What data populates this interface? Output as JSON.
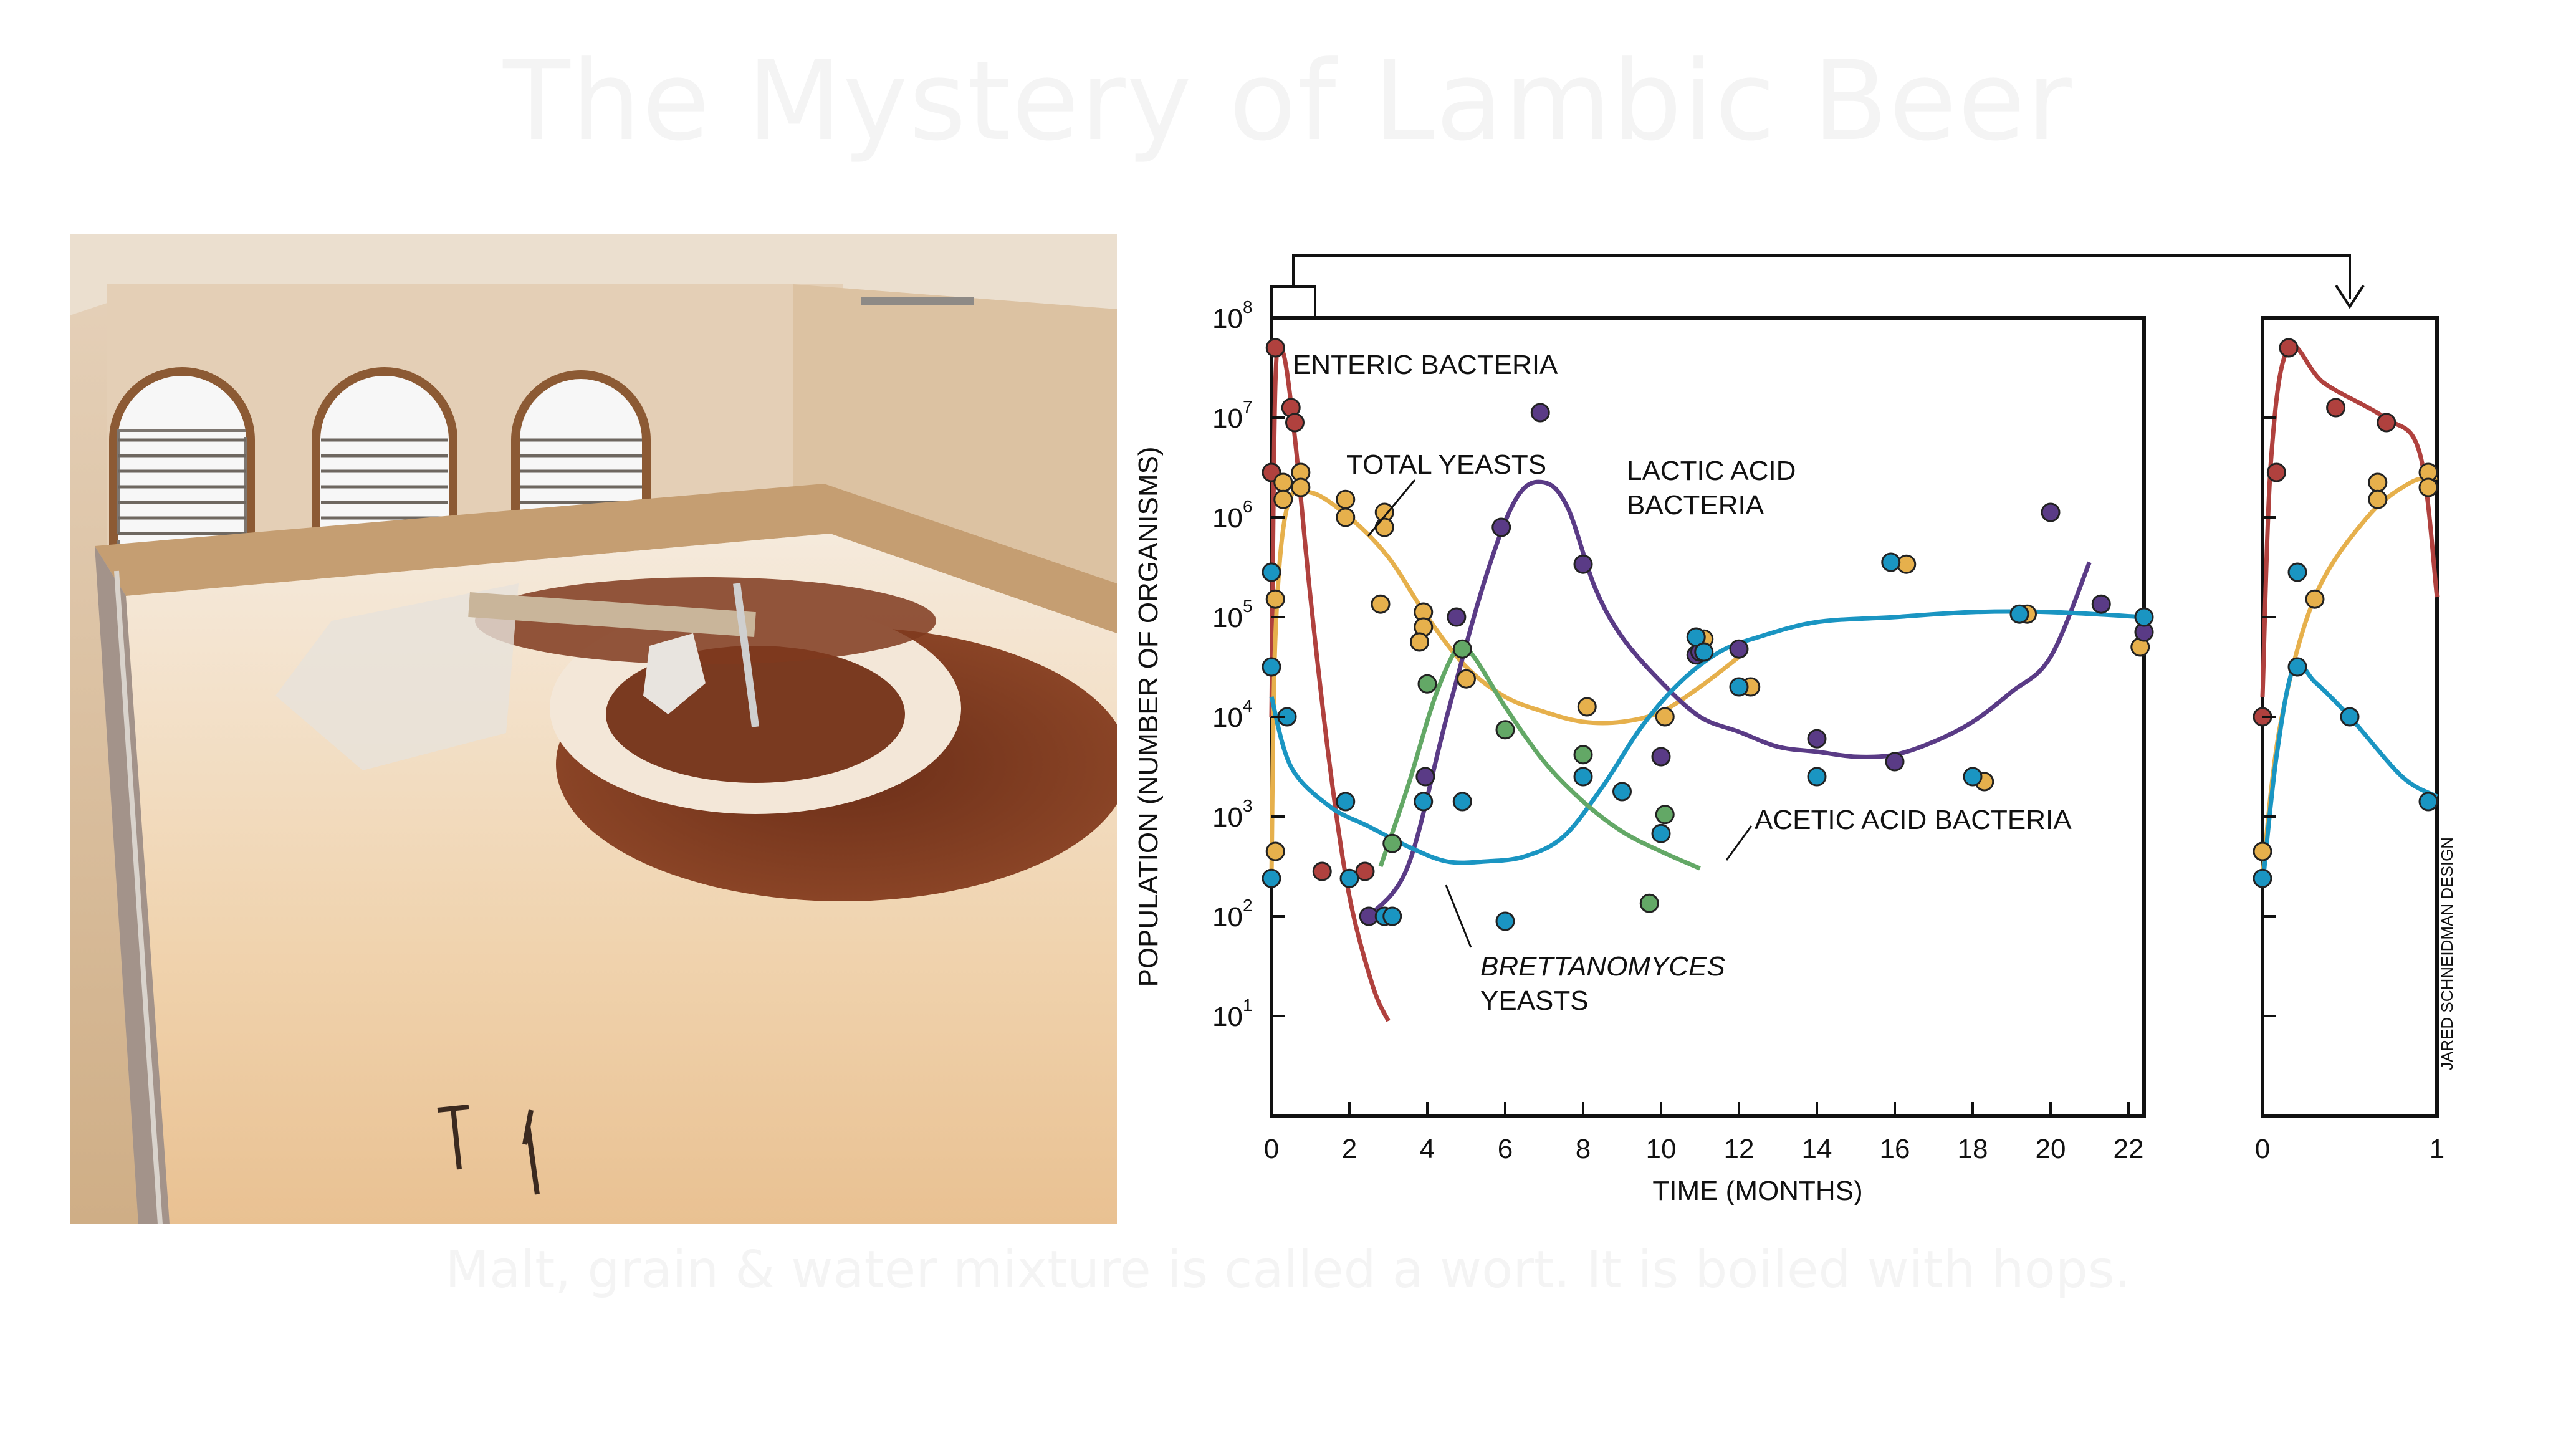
{
  "slide": {
    "title": "The Mystery of Lambic Beer",
    "caption": "Malt, grain & water mixture is called a wort. It is boiled with hops."
  },
  "colors": {
    "enteric": "#b0413e",
    "yeasts": "#e6b04c",
    "lactic": "#5a3b86",
    "acetic": "#1a95c2",
    "brett": "#63a866"
  },
  "chart_data": {
    "type": "scatter",
    "ylabel": "POPULATION (NUMBER OF ORGANISMS)",
    "xlabel": "TIME (MONTHS)",
    "credit": "JARED SCHNEIDMAN DESIGN",
    "y_scale": "log",
    "y_ticks": [
      {
        "base": "10",
        "exp": "1"
      },
      {
        "base": "10",
        "exp": "2"
      },
      {
        "base": "10",
        "exp": "3"
      },
      {
        "base": "10",
        "exp": "4"
      },
      {
        "base": "10",
        "exp": "5"
      },
      {
        "base": "10",
        "exp": "6"
      },
      {
        "base": "10",
        "exp": "7"
      },
      {
        "base": "10",
        "exp": "8"
      }
    ],
    "main_panel": {
      "xlim": [
        0,
        22.4
      ],
      "x_ticks": [
        "0",
        "2",
        "4",
        "6",
        "8",
        "10",
        "12",
        "14",
        "16",
        "18",
        "20",
        "22"
      ]
    },
    "inset_panel": {
      "xlim": [
        0,
        1
      ],
      "x_ticks": [
        "0",
        "1"
      ]
    },
    "labels": {
      "enteric": "ENTERIC BACTERIA",
      "yeasts": "TOTAL YEASTS",
      "lactic_1": "LACTIC ACID",
      "lactic_2": "BACTERIA",
      "acetic": "ACETIC ACID BACTERIA",
      "brett_1": "BRETTANOMYCES",
      "brett_2": "YEASTS"
    },
    "series": [
      {
        "name": "ENTERIC BACTERIA",
        "key": "enteric",
        "points": [
          [
            0,
            6.45
          ],
          [
            0.1,
            7.7
          ],
          [
            0.5,
            7.1
          ],
          [
            0.6,
            6.95
          ],
          [
            2.4,
            2.45
          ],
          [
            1.3,
            2.45
          ]
        ],
        "curve": [
          [
            0,
            4
          ],
          [
            0.1,
            7.35
          ],
          [
            0.3,
            7.65
          ],
          [
            0.6,
            6.8
          ],
          [
            1.0,
            5.2
          ],
          [
            1.5,
            3.5
          ],
          [
            2.0,
            2.2
          ],
          [
            2.6,
            1.3
          ],
          [
            3.0,
            0.95
          ]
        ],
        "inset_points": [
          [
            0,
            4
          ],
          [
            0.08,
            6.45
          ],
          [
            0.15,
            7.7
          ],
          [
            0.42,
            7.1
          ],
          [
            0.71,
            6.95
          ]
        ],
        "inset_curve": [
          [
            0,
            4.2
          ],
          [
            0.05,
            6.6
          ],
          [
            0.15,
            7.7
          ],
          [
            0.35,
            7.35
          ],
          [
            0.7,
            7.0
          ],
          [
            0.9,
            6.65
          ],
          [
            1.0,
            5.2
          ]
        ]
      },
      {
        "name": "TOTAL YEASTS",
        "key": "yeasts",
        "points": [
          [
            0.1,
            5.18
          ],
          [
            0.1,
            2.65
          ],
          [
            0.3,
            6.35
          ],
          [
            0.3,
            6.18
          ],
          [
            0.75,
            6.45
          ],
          [
            0.75,
            6.3
          ],
          [
            1.9,
            6.18
          ],
          [
            1.9,
            6.0
          ],
          [
            2.9,
            6.05
          ],
          [
            2.9,
            5.9
          ],
          [
            2.8,
            5.13
          ],
          [
            3.9,
            5.05
          ],
          [
            3.9,
            4.9
          ],
          [
            3.8,
            4.75
          ],
          [
            5.0,
            4.38
          ],
          [
            8.1,
            4.1
          ],
          [
            10.1,
            4.0
          ],
          [
            11.1,
            4.78
          ],
          [
            12.3,
            4.3
          ],
          [
            16.3,
            5.53
          ],
          [
            18.3,
            3.35
          ],
          [
            19.4,
            5.03
          ],
          [
            22.3,
            4.7
          ]
        ],
        "curve": [
          [
            0,
            2.4
          ],
          [
            0.1,
            4.8
          ],
          [
            0.4,
            6.1
          ],
          [
            1.0,
            6.25
          ],
          [
            2.0,
            6.0
          ],
          [
            3.0,
            5.6
          ],
          [
            4.0,
            5.0
          ],
          [
            5.0,
            4.5
          ],
          [
            6.0,
            4.2
          ],
          [
            7.0,
            4.05
          ],
          [
            8.0,
            3.95
          ],
          [
            9.0,
            3.95
          ],
          [
            10.0,
            4.05
          ],
          [
            11.0,
            4.3
          ],
          [
            12.0,
            4.6
          ]
        ],
        "inset_points": [
          [
            0,
            2.65
          ],
          [
            0.3,
            5.18
          ],
          [
            0.66,
            6.35
          ],
          [
            0.66,
            6.18
          ],
          [
            0.95,
            6.45
          ],
          [
            0.95,
            6.3
          ]
        ],
        "inset_curve": [
          [
            0,
            2.4
          ],
          [
            0.1,
            3.9
          ],
          [
            0.3,
            5.2
          ],
          [
            0.6,
            6.0
          ],
          [
            0.85,
            6.35
          ],
          [
            1.0,
            6.4
          ]
        ]
      },
      {
        "name": "LACTIC ACID BACTERIA",
        "key": "lactic",
        "points": [
          [
            2.5,
            2.0
          ],
          [
            3.95,
            3.4
          ],
          [
            4.75,
            5.0
          ],
          [
            5.9,
            5.9
          ],
          [
            6.9,
            7.05
          ],
          [
            8.0,
            5.53
          ],
          [
            10.0,
            3.6
          ],
          [
            10.9,
            4.62
          ],
          [
            11.0,
            4.65
          ],
          [
            12.0,
            4.68
          ],
          [
            14.0,
            3.78
          ],
          [
            16.0,
            3.55
          ],
          [
            20.0,
            6.05
          ],
          [
            21.3,
            5.13
          ],
          [
            22.4,
            4.85
          ]
        ],
        "curve": [
          [
            2.5,
            2.0
          ],
          [
            3.5,
            2.5
          ],
          [
            4.5,
            4.0
          ],
          [
            5.5,
            5.4
          ],
          [
            6.3,
            6.2
          ],
          [
            7.0,
            6.35
          ],
          [
            7.6,
            6.1
          ],
          [
            8.3,
            5.3
          ],
          [
            9.0,
            4.8
          ],
          [
            10.0,
            4.35
          ],
          [
            11.0,
            4.0
          ],
          [
            12.0,
            3.85
          ],
          [
            13.0,
            3.7
          ],
          [
            14.0,
            3.65
          ],
          [
            15.0,
            3.6
          ],
          [
            16.0,
            3.62
          ],
          [
            17.0,
            3.75
          ],
          [
            18.0,
            3.95
          ],
          [
            19.0,
            4.25
          ],
          [
            20.0,
            4.6
          ],
          [
            21.0,
            5.55
          ]
        ],
        "inset_points": [],
        "inset_curve": []
      },
      {
        "name": "ACETIC ACID BACTERIA",
        "key": "acetic",
        "points": [
          [
            0,
            5.45
          ],
          [
            0,
            4.5
          ],
          [
            0,
            2.38
          ],
          [
            0.4,
            4.0
          ],
          [
            1.9,
            3.15
          ],
          [
            2.0,
            2.38
          ],
          [
            2.9,
            2.0
          ],
          [
            3.1,
            2.0
          ],
          [
            3.9,
            3.15
          ],
          [
            4.9,
            3.15
          ],
          [
            6.0,
            1.95
          ],
          [
            8.0,
            3.4
          ],
          [
            9.0,
            3.25
          ],
          [
            10.0,
            2.83
          ],
          [
            10.9,
            4.8
          ],
          [
            11.1,
            4.65
          ],
          [
            12.0,
            4.3
          ],
          [
            14.0,
            3.4
          ],
          [
            15.9,
            5.55
          ],
          [
            18.0,
            3.4
          ],
          [
            19.2,
            5.03
          ],
          [
            22.4,
            5.0
          ]
        ],
        "curve": [
          [
            0,
            4.2
          ],
          [
            0.5,
            3.5
          ],
          [
            1.5,
            3.1
          ],
          [
            2.5,
            2.9
          ],
          [
            3.5,
            2.7
          ],
          [
            4.5,
            2.55
          ],
          [
            5.5,
            2.55
          ],
          [
            6.5,
            2.6
          ],
          [
            7.5,
            2.8
          ],
          [
            8.5,
            3.3
          ],
          [
            9.5,
            3.9
          ],
          [
            10.5,
            4.35
          ],
          [
            11.5,
            4.65
          ],
          [
            12.5,
            4.8
          ],
          [
            14.0,
            4.95
          ],
          [
            16.0,
            5.0
          ],
          [
            18.0,
            5.05
          ],
          [
            20.0,
            5.05
          ],
          [
            22.4,
            5.0
          ]
        ],
        "inset_points": [
          [
            0,
            2.38
          ],
          [
            0.2,
            5.45
          ],
          [
            0.2,
            4.5
          ],
          [
            0.5,
            4.0
          ],
          [
            0.95,
            3.15
          ]
        ],
        "inset_curve": [
          [
            0,
            2.3
          ],
          [
            0.08,
            3.6
          ],
          [
            0.18,
            4.5
          ],
          [
            0.3,
            4.35
          ],
          [
            0.5,
            4.0
          ],
          [
            0.8,
            3.4
          ],
          [
            1.0,
            3.2
          ]
        ]
      },
      {
        "name": "BRETTANOMYCES YEASTS",
        "key": "brett",
        "points": [
          [
            3.1,
            2.73
          ],
          [
            4.0,
            4.33
          ],
          [
            4.9,
            4.68
          ],
          [
            6.0,
            3.87
          ],
          [
            8.0,
            3.62
          ],
          [
            9.7,
            2.13
          ],
          [
            10.1,
            3.02
          ]
        ],
        "curve": [
          [
            2.8,
            2.5
          ],
          [
            3.5,
            3.3
          ],
          [
            4.2,
            4.2
          ],
          [
            4.8,
            4.7
          ],
          [
            5.2,
            4.6
          ],
          [
            6.0,
            4.1
          ],
          [
            7.0,
            3.55
          ],
          [
            8.0,
            3.15
          ],
          [
            9.0,
            2.85
          ],
          [
            10.0,
            2.65
          ],
          [
            11.0,
            2.48
          ]
        ],
        "inset_points": [],
        "inset_curve": []
      }
    ]
  }
}
